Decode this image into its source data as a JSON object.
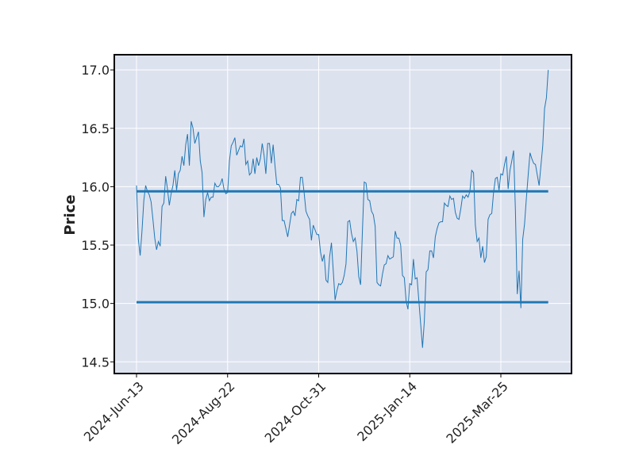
{
  "chart_data": {
    "type": "line",
    "title": "",
    "xlabel": "",
    "ylabel": "Price",
    "ylim": [
      14.4,
      17.13
    ],
    "grid": true,
    "colors": {
      "background": "#dde2ef",
      "grid": "#ffffff",
      "line": "#1f77b4",
      "hline": "#1f77b4",
      "frame": "#000000"
    },
    "y_ticks": [
      "14.5",
      "15.0",
      "15.5",
      "16.0",
      "16.5",
      "17.0"
    ],
    "x_ticks": [
      {
        "index": 0,
        "label": "2024-Jun-13"
      },
      {
        "index": 50,
        "label": "2024-Aug-22"
      },
      {
        "index": 100,
        "label": "2024-Oct-31"
      },
      {
        "index": 150,
        "label": "2025-Jan-14"
      },
      {
        "index": 200,
        "label": "2025-Mar-25"
      }
    ],
    "hlines": [
      15.96,
      15.01
    ],
    "series": [
      {
        "values": [
          16.01,
          15.55,
          15.41,
          15.62,
          15.88,
          16.01,
          15.96,
          15.93,
          15.87,
          15.72,
          15.56,
          15.46,
          15.53,
          15.49,
          15.83,
          15.86,
          16.09,
          15.98,
          15.84,
          15.94,
          16.01,
          16.14,
          15.97,
          16.11,
          16.14,
          16.26,
          16.18,
          16.36,
          16.45,
          16.18,
          16.56,
          16.5,
          16.37,
          16.42,
          16.47,
          16.22,
          16.12,
          15.74,
          15.89,
          15.95,
          15.88,
          15.91,
          15.91,
          16.03,
          16.0,
          16.0,
          16.02,
          16.07,
          15.98,
          15.94,
          15.95,
          16.22,
          16.35,
          16.38,
          16.42,
          16.27,
          16.31,
          16.35,
          16.34,
          16.41,
          16.19,
          16.22,
          16.1,
          16.12,
          16.24,
          16.11,
          16.25,
          16.18,
          16.24,
          16.37,
          16.27,
          16.11,
          16.37,
          16.37,
          16.2,
          16.36,
          16.18,
          16.02,
          16.02,
          15.99,
          15.71,
          15.71,
          15.64,
          15.57,
          15.67,
          15.77,
          15.79,
          15.75,
          15.89,
          15.88,
          16.08,
          16.08,
          15.95,
          15.79,
          15.75,
          15.72,
          15.54,
          15.67,
          15.63,
          15.59,
          15.59,
          15.44,
          15.36,
          15.42,
          15.2,
          15.18,
          15.4,
          15.52,
          15.28,
          15.03,
          15.11,
          15.17,
          15.16,
          15.18,
          15.24,
          15.34,
          15.7,
          15.71,
          15.6,
          15.53,
          15.56,
          15.45,
          15.23,
          15.16,
          15.62,
          16.04,
          16.03,
          15.89,
          15.88,
          15.79,
          15.76,
          15.66,
          15.18,
          15.16,
          15.15,
          15.25,
          15.33,
          15.34,
          15.41,
          15.38,
          15.39,
          15.4,
          15.62,
          15.56,
          15.56,
          15.5,
          15.24,
          15.22,
          15.02,
          14.95,
          15.17,
          15.16,
          15.38,
          15.21,
          15.22,
          15.02,
          14.82,
          14.62,
          14.85,
          15.27,
          15.29,
          15.45,
          15.45,
          15.39,
          15.57,
          15.64,
          15.69,
          15.7,
          15.7,
          15.86,
          15.84,
          15.83,
          15.92,
          15.89,
          15.9,
          15.78,
          15.73,
          15.72,
          15.81,
          15.92,
          15.9,
          15.93,
          15.91,
          15.96,
          16.14,
          16.12,
          15.67,
          15.53,
          15.56,
          15.39,
          15.49,
          15.35,
          15.4,
          15.72,
          15.76,
          15.77,
          15.95,
          16.07,
          16.08,
          15.97,
          16.11,
          16.1,
          16.19,
          16.26,
          15.98,
          16.14,
          16.22,
          16.31,
          15.79,
          15.08,
          15.28,
          14.96,
          15.55,
          15.68,
          15.9,
          16.1,
          16.29,
          16.24,
          16.2,
          16.19,
          16.1,
          16.01,
          16.18,
          16.35,
          16.67,
          16.76,
          17.0
        ]
      }
    ]
  }
}
